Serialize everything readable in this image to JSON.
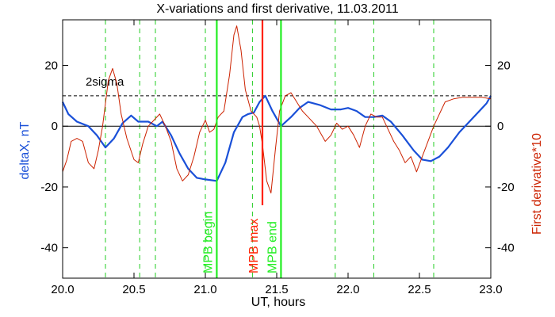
{
  "chart_data": {
    "type": "line",
    "title": "X-variations and first derivative, 11.03.2011",
    "xlabel": "UT, hours",
    "ylabel_left": "deltaX, nT",
    "ylabel_right": "First derivative*10",
    "xlim": [
      20.0,
      23.0
    ],
    "ylim": [
      -50,
      35
    ],
    "xticks": [
      "20.0",
      "20.5",
      "21.0",
      "21.5",
      "22.0",
      "22.5",
      "23.0"
    ],
    "xtick_values": [
      20.0,
      20.5,
      21.0,
      21.5,
      22.0,
      22.5,
      23.0
    ],
    "yticks": [
      "-40",
      "-20",
      "0",
      "20"
    ],
    "ytick_values": [
      -40,
      -20,
      0,
      20
    ],
    "grid": false,
    "colors": {
      "deltaX": "#1a50d8",
      "derivative": "#cc2200",
      "mpb_lines": "#22ee22",
      "mpb_max": "#ff2200",
      "dashed_verticals": "#22cc22",
      "threshold": "#000000"
    },
    "threshold": {
      "label": "2sigma",
      "value": 10
    },
    "dashed_verticals": [
      20.3,
      20.54,
      20.65,
      21.0,
      21.33,
      21.91,
      22.18,
      22.6
    ],
    "markers": [
      {
        "label": "MPB begin",
        "x": 21.08,
        "color": "#22ee22"
      },
      {
        "label": "MPB max",
        "x": 21.4,
        "color": "#ff2200",
        "y_range": [
          -26,
          35
        ]
      },
      {
        "label": "MPB end",
        "x": 21.53,
        "color": "#22ee22"
      }
    ],
    "series": [
      {
        "key": "deltaX",
        "axis": "left",
        "points": [
          [
            20.0,
            8
          ],
          [
            20.04,
            4
          ],
          [
            20.1,
            1.5
          ],
          [
            20.18,
            0
          ],
          [
            20.24,
            -3
          ],
          [
            20.3,
            -7
          ],
          [
            20.36,
            -4
          ],
          [
            20.42,
            1
          ],
          [
            20.48,
            3.5
          ],
          [
            20.53,
            1.5
          ],
          [
            20.6,
            1.5
          ],
          [
            20.66,
            0
          ],
          [
            20.7,
            1.5
          ],
          [
            20.76,
            -3
          ],
          [
            20.82,
            -9
          ],
          [
            20.88,
            -14
          ],
          [
            20.94,
            -17
          ],
          [
            21.0,
            -17.5
          ],
          [
            21.08,
            -18
          ],
          [
            21.14,
            -12
          ],
          [
            21.2,
            -2
          ],
          [
            21.26,
            3
          ],
          [
            21.3,
            4
          ],
          [
            21.34,
            4.5
          ],
          [
            21.38,
            8
          ],
          [
            21.42,
            10
          ],
          [
            21.47,
            5
          ],
          [
            21.53,
            0
          ],
          [
            21.6,
            3
          ],
          [
            21.66,
            6
          ],
          [
            21.72,
            8
          ],
          [
            21.8,
            7
          ],
          [
            21.88,
            5.5
          ],
          [
            21.95,
            5.5
          ],
          [
            22.0,
            6
          ],
          [
            22.06,
            5
          ],
          [
            22.12,
            3
          ],
          [
            22.18,
            3
          ],
          [
            22.24,
            3.5
          ],
          [
            22.3,
            1.5
          ],
          [
            22.38,
            -3
          ],
          [
            22.46,
            -8
          ],
          [
            22.52,
            -11
          ],
          [
            22.58,
            -11.5
          ],
          [
            22.64,
            -10
          ],
          [
            22.7,
            -7
          ],
          [
            22.78,
            -2
          ],
          [
            22.86,
            2
          ],
          [
            22.92,
            5
          ],
          [
            22.97,
            7.5
          ],
          [
            23.0,
            10
          ]
        ]
      },
      {
        "key": "derivative",
        "axis": "right",
        "points": [
          [
            20.0,
            -15
          ],
          [
            20.03,
            -11
          ],
          [
            20.06,
            -5
          ],
          [
            20.1,
            -4
          ],
          [
            20.14,
            -5
          ],
          [
            20.18,
            -12
          ],
          [
            20.22,
            -14
          ],
          [
            20.25,
            -8
          ],
          [
            20.28,
            0
          ],
          [
            20.32,
            15
          ],
          [
            20.35,
            19
          ],
          [
            20.38,
            14
          ],
          [
            20.41,
            4
          ],
          [
            20.45,
            -4
          ],
          [
            20.5,
            -11
          ],
          [
            20.53,
            -12
          ],
          [
            20.56,
            -6
          ],
          [
            20.6,
            0
          ],
          [
            20.64,
            2
          ],
          [
            20.68,
            4
          ],
          [
            20.72,
            0
          ],
          [
            20.76,
            -5
          ],
          [
            20.8,
            -14
          ],
          [
            20.84,
            -18
          ],
          [
            20.88,
            -16
          ],
          [
            20.92,
            -10
          ],
          [
            20.96,
            -2
          ],
          [
            21.0,
            2
          ],
          [
            21.03,
            -2
          ],
          [
            21.06,
            -1
          ],
          [
            21.09,
            3
          ],
          [
            21.13,
            5
          ],
          [
            21.17,
            17
          ],
          [
            21.2,
            30
          ],
          [
            21.22,
            33
          ],
          [
            21.25,
            25
          ],
          [
            21.28,
            12
          ],
          [
            21.32,
            5
          ],
          [
            21.36,
            3
          ],
          [
            21.38,
            0
          ],
          [
            21.4,
            -6
          ],
          [
            21.43,
            -18
          ],
          [
            21.46,
            -22
          ],
          [
            21.49,
            -8
          ],
          [
            21.52,
            5
          ],
          [
            21.56,
            10
          ],
          [
            21.6,
            11
          ],
          [
            21.64,
            8
          ],
          [
            21.68,
            5
          ],
          [
            21.72,
            3
          ],
          [
            21.78,
            0
          ],
          [
            21.84,
            -5
          ],
          [
            21.88,
            -3
          ],
          [
            21.92,
            1
          ],
          [
            21.96,
            -1
          ],
          [
            22.0,
            0
          ],
          [
            22.04,
            -3
          ],
          [
            22.08,
            -7
          ],
          [
            22.12,
            0
          ],
          [
            22.16,
            4
          ],
          [
            22.2,
            3
          ],
          [
            22.24,
            3
          ],
          [
            22.28,
            -1
          ],
          [
            22.32,
            -5
          ],
          [
            22.36,
            -8
          ],
          [
            22.4,
            -12
          ],
          [
            22.44,
            -10
          ],
          [
            22.48,
            -15
          ],
          [
            22.52,
            -10
          ],
          [
            22.56,
            -5
          ],
          [
            22.6,
            0
          ],
          [
            22.64,
            4
          ],
          [
            22.68,
            8
          ],
          [
            22.74,
            9
          ],
          [
            22.8,
            9.5
          ],
          [
            22.88,
            9.5
          ],
          [
            22.94,
            9.5
          ],
          [
            23.0,
            9
          ]
        ]
      }
    ]
  }
}
